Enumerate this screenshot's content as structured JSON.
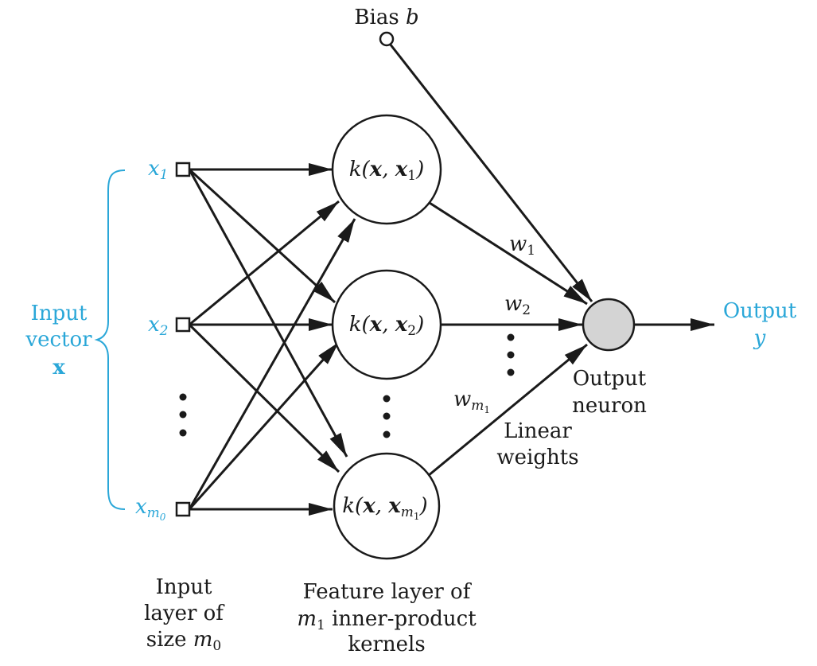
{
  "colors": {
    "ink": "#1a1a1a",
    "accent": "#2aa7d8",
    "output_neuron_fill": "#d4d4d4"
  },
  "bias": {
    "label": "Bias",
    "symbol": "b"
  },
  "input_vector": {
    "line1": "Input",
    "line2": "vector",
    "symbol": "x"
  },
  "inputs": [
    {
      "base": "x",
      "sub": "1",
      "subsub": ""
    },
    {
      "base": "x",
      "sub": "2",
      "subsub": ""
    },
    {
      "base": "x",
      "sub": "m",
      "subsub": "0"
    }
  ],
  "kernels": [
    {
      "func": "k(",
      "arg1": "x",
      "sep": ", ",
      "arg2": "x",
      "sub": "1",
      "subsub": "",
      "close": ")"
    },
    {
      "func": "k(",
      "arg1": "x",
      "sep": ", ",
      "arg2": "x",
      "sub": "2",
      "subsub": "",
      "close": ")"
    },
    {
      "func": "k(",
      "arg1": "x",
      "sep": ", ",
      "arg2": "x",
      "sub": "m",
      "subsub": "1",
      "close": ")"
    }
  ],
  "weights": [
    {
      "base": "w",
      "sub": "1",
      "subsub": ""
    },
    {
      "base": "w",
      "sub": "2",
      "subsub": ""
    },
    {
      "base": "w",
      "sub": "m",
      "subsub": "1"
    }
  ],
  "output": {
    "label": "Output",
    "symbol": "y"
  },
  "output_neuron": {
    "line1": "Output",
    "line2": "neuron"
  },
  "linear_weights": {
    "line1": "Linear",
    "line2": "weights"
  },
  "input_layer": {
    "line1": "Input",
    "line2": "layer of",
    "line3_text": "size ",
    "line3_sym": "m",
    "line3_sub": "0"
  },
  "feature_layer": {
    "line1": "Feature layer of",
    "line2_sym": "m",
    "line2_sub": "1",
    "line2_text": " inner-product",
    "line3": "kernels"
  }
}
